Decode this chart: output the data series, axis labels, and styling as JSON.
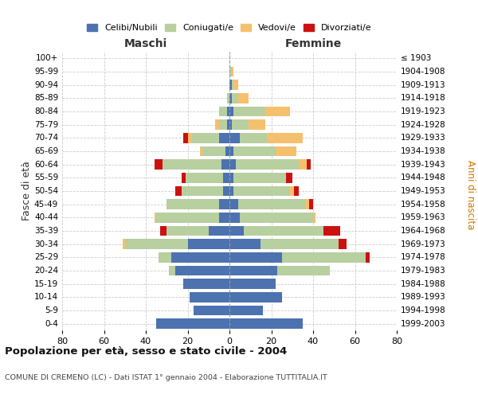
{
  "age_groups": [
    "0-4",
    "5-9",
    "10-14",
    "15-19",
    "20-24",
    "25-29",
    "30-34",
    "35-39",
    "40-44",
    "45-49",
    "50-54",
    "55-59",
    "60-64",
    "65-69",
    "70-74",
    "75-79",
    "80-84",
    "85-89",
    "90-94",
    "95-99",
    "100+"
  ],
  "birth_years": [
    "1999-2003",
    "1994-1998",
    "1989-1993",
    "1984-1988",
    "1979-1983",
    "1974-1978",
    "1969-1973",
    "1964-1968",
    "1959-1963",
    "1954-1958",
    "1949-1953",
    "1944-1948",
    "1939-1943",
    "1934-1938",
    "1929-1933",
    "1924-1928",
    "1919-1923",
    "1914-1918",
    "1909-1913",
    "1904-1908",
    "≤ 1903"
  ],
  "male": {
    "celibi": [
      35,
      17,
      19,
      22,
      26,
      28,
      20,
      10,
      5,
      5,
      3,
      3,
      4,
      2,
      5,
      1,
      1,
      0,
      0,
      0,
      0
    ],
    "coniugati": [
      0,
      0,
      0,
      0,
      3,
      6,
      30,
      20,
      30,
      25,
      20,
      18,
      28,
      11,
      13,
      4,
      4,
      1,
      0,
      0,
      0
    ],
    "vedovi": [
      0,
      0,
      0,
      0,
      0,
      0,
      1,
      0,
      1,
      0,
      0,
      0,
      0,
      1,
      2,
      2,
      0,
      0,
      0,
      0,
      0
    ],
    "divorziati": [
      0,
      0,
      0,
      0,
      0,
      0,
      0,
      3,
      0,
      0,
      3,
      2,
      4,
      0,
      2,
      0,
      0,
      0,
      0,
      0,
      0
    ]
  },
  "female": {
    "nubili": [
      35,
      16,
      25,
      22,
      23,
      25,
      15,
      7,
      5,
      4,
      2,
      2,
      3,
      2,
      5,
      1,
      2,
      1,
      1,
      0,
      0
    ],
    "coniugate": [
      0,
      0,
      0,
      0,
      25,
      40,
      37,
      38,
      35,
      32,
      27,
      25,
      30,
      20,
      13,
      8,
      15,
      3,
      1,
      1,
      0
    ],
    "vedove": [
      0,
      0,
      0,
      0,
      0,
      0,
      0,
      0,
      1,
      2,
      2,
      0,
      4,
      10,
      17,
      8,
      12,
      5,
      2,
      1,
      0
    ],
    "divorziate": [
      0,
      0,
      0,
      0,
      0,
      2,
      4,
      8,
      0,
      2,
      2,
      3,
      2,
      0,
      0,
      0,
      0,
      0,
      0,
      0,
      0
    ]
  },
  "colors": {
    "celibi": "#4c72b0",
    "coniugati": "#b8cfa0",
    "vedovi": "#f5c06e",
    "divorziati": "#cc1111"
  },
  "xlim": 80,
  "title": "Popolazione per età, sesso e stato civile - 2004",
  "subtitle": "COMUNE DI CREMENO (LC) - Dati ISTAT 1° gennaio 2004 - Elaborazione TUTTITALIA.IT",
  "xlabel_left": "Maschi",
  "xlabel_right": "Femmine",
  "ylabel_left": "Fasce di età",
  "ylabel_right": "Anni di nascita",
  "legend_labels": [
    "Celibi/Nubili",
    "Coniugati/e",
    "Vedovi/e",
    "Divorziati/e"
  ]
}
